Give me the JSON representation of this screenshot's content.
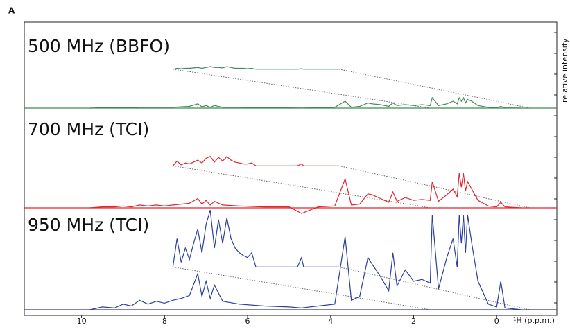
{
  "panel_label": "A",
  "y_label": "relative intensity",
  "x_axis": {
    "xlim": [
      11.38,
      -1.45
    ],
    "xticks": [
      10,
      8,
      6,
      4,
      2,
      0
    ],
    "label": "¹H (p.p.m.)"
  },
  "chart_data": [
    {
      "type": "line",
      "title": "500 MHz (BBFO)",
      "color": "#3f8a55",
      "ylim": [
        0,
        100
      ],
      "x": [
        9.8,
        9.5,
        9.2,
        9.0,
        8.8,
        8.6,
        8.4,
        8.2,
        8.0,
        7.8,
        7.6,
        7.4,
        7.2,
        7.1,
        7.0,
        6.9,
        6.8,
        6.6,
        6.2,
        5.6,
        5.0,
        4.7,
        4.3,
        3.9,
        3.65,
        3.5,
        3.3,
        3.1,
        3.0,
        2.8,
        2.6,
        2.5,
        2.4,
        2.2,
        2.0,
        1.8,
        1.6,
        1.55,
        1.4,
        1.2,
        1.05,
        0.95,
        0.9,
        0.85,
        0.8,
        0.75,
        0.7,
        0.6,
        0.45,
        0.2,
        0.0,
        -0.1,
        -0.2,
        -0.6
      ],
      "values": [
        0,
        0.5,
        0.3,
        1,
        0.5,
        1,
        1,
        1,
        1,
        1,
        1.5,
        2,
        5,
        1.5,
        3,
        1,
        3,
        1,
        1,
        0.5,
        0.3,
        0.2,
        0.5,
        1,
        8,
        1,
        2,
        6,
        5,
        4,
        2,
        6,
        3,
        4,
        3,
        4,
        3,
        12,
        3,
        5,
        8,
        5,
        12,
        8,
        12,
        6,
        10,
        8,
        3,
        1,
        0.5,
        2,
        0.3,
        0
      ],
      "inset": {
        "x": [
          7.8,
          7.7,
          7.6,
          7.5,
          7.4,
          7.3,
          7.2,
          7.1,
          7.0,
          6.9,
          6.8,
          6.7,
          6.6,
          6.5,
          6.4,
          6.3,
          6.2,
          6.1,
          6.0,
          5.9,
          5.8,
          4.8,
          4.7,
          4.65,
          3.8
        ],
        "values": [
          0,
          1,
          0.5,
          1,
          1,
          1.5,
          2,
          1,
          2,
          3,
          2,
          2,
          1.5,
          3,
          2,
          1,
          1,
          1,
          0.5,
          1,
          0,
          0,
          0.5,
          0,
          0
        ]
      }
    },
    {
      "type": "line",
      "title": "700 MHz (TCI)",
      "color": "#e3232b",
      "ylim": [
        0,
        100
      ],
      "x": [
        9.8,
        9.5,
        9.2,
        9.0,
        8.8,
        8.6,
        8.4,
        8.2,
        8.0,
        7.8,
        7.6,
        7.4,
        7.2,
        7.1,
        7.0,
        6.9,
        6.8,
        6.6,
        6.2,
        5.6,
        5.0,
        4.7,
        4.3,
        3.9,
        3.65,
        3.5,
        3.3,
        3.1,
        3.0,
        2.8,
        2.6,
        2.5,
        2.4,
        2.2,
        2.0,
        1.8,
        1.6,
        1.55,
        1.4,
        1.2,
        1.05,
        0.95,
        0.9,
        0.85,
        0.8,
        0.75,
        0.7,
        0.6,
        0.45,
        0.2,
        0.0,
        -0.1,
        -0.2,
        -0.6
      ],
      "values": [
        0,
        1,
        1,
        2,
        1,
        3,
        2,
        3,
        2,
        3,
        4,
        5,
        10,
        4,
        8,
        3,
        7,
        3,
        2,
        1,
        1,
        -6,
        1,
        2,
        31,
        3,
        4,
        15,
        14,
        10,
        6,
        17,
        7,
        11,
        8,
        9,
        8,
        28,
        7,
        14,
        20,
        12,
        37,
        22,
        37,
        18,
        28,
        20,
        8,
        2,
        1,
        6,
        1,
        0
      ],
      "inset": {
        "x": [
          7.8,
          7.7,
          7.6,
          7.5,
          7.4,
          7.3,
          7.2,
          7.1,
          7.0,
          6.9,
          6.8,
          6.7,
          6.6,
          6.5,
          6.4,
          6.3,
          6.2,
          6.1,
          6.0,
          5.9,
          5.8,
          4.8,
          4.7,
          4.65,
          3.8
        ],
        "values": [
          0,
          5,
          1,
          3,
          2,
          4,
          6,
          3,
          8,
          10,
          4,
          9,
          5,
          10,
          6,
          4,
          3,
          2,
          2,
          3,
          0,
          0,
          2,
          0,
          0
        ]
      }
    },
    {
      "type": "line",
      "title": "950 MHz (TCI)",
      "color": "#2b3f9c",
      "ylim": [
        0,
        100
      ],
      "x": [
        9.8,
        9.5,
        9.2,
        9.0,
        8.8,
        8.6,
        8.4,
        8.2,
        8.0,
        7.8,
        7.6,
        7.4,
        7.2,
        7.1,
        7.0,
        6.9,
        6.8,
        6.6,
        6.2,
        5.6,
        5.0,
        4.7,
        4.3,
        3.9,
        3.65,
        3.5,
        3.3,
        3.1,
        3.0,
        2.8,
        2.6,
        2.5,
        2.4,
        2.2,
        2.0,
        1.8,
        1.6,
        1.55,
        1.4,
        1.2,
        1.05,
        0.95,
        0.9,
        0.85,
        0.8,
        0.75,
        0.7,
        0.6,
        0.45,
        0.2,
        0.0,
        -0.1,
        -0.2,
        -0.6
      ],
      "values": [
        0,
        3,
        2,
        6,
        4,
        10,
        6,
        9,
        7,
        10,
        12,
        15,
        38,
        14,
        30,
        12,
        26,
        9,
        6,
        4,
        3,
        2,
        4,
        6,
        77,
        10,
        14,
        55,
        48,
        35,
        20,
        60,
        25,
        42,
        30,
        32,
        28,
        100,
        22,
        55,
        75,
        45,
        100,
        70,
        100,
        60,
        100,
        70,
        30,
        6,
        3,
        30,
        2,
        0
      ],
      "inset": {
        "x": [
          7.8,
          7.7,
          7.6,
          7.5,
          7.4,
          7.3,
          7.2,
          7.1,
          7.0,
          6.9,
          6.8,
          6.7,
          6.6,
          6.5,
          6.4,
          6.3,
          6.2,
          6.1,
          6.0,
          5.9,
          5.8,
          4.8,
          4.7,
          4.65,
          3.8
        ],
        "values": [
          0,
          30,
          5,
          20,
          8,
          25,
          40,
          15,
          45,
          60,
          20,
          50,
          25,
          52,
          30,
          20,
          15,
          12,
          10,
          15,
          0,
          0,
          10,
          0,
          0
        ]
      }
    }
  ]
}
